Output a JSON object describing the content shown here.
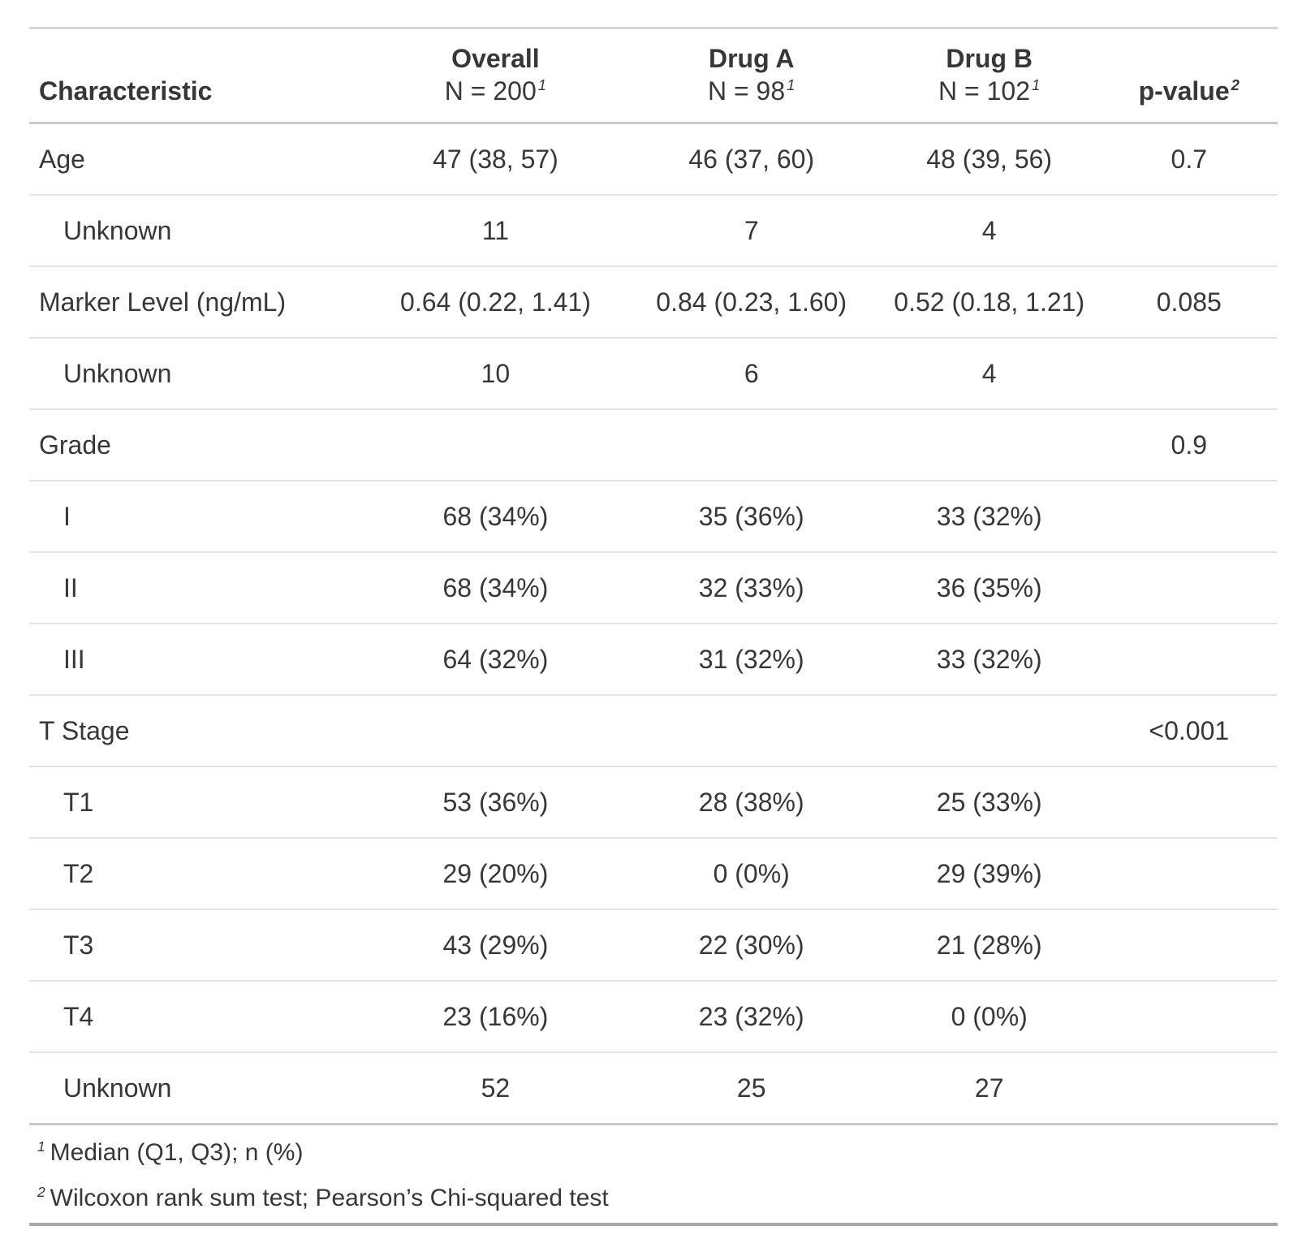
{
  "chart_data": {
    "type": "table",
    "title": "",
    "columns": [
      {
        "label": "Characteristic",
        "sublabel": "",
        "footnote_mark": "",
        "align": "left"
      },
      {
        "label": "Overall",
        "sublabel": "N = 200",
        "footnote_mark": "1",
        "align": "center"
      },
      {
        "label": "Drug A",
        "sublabel": "N = 98",
        "footnote_mark": "1",
        "align": "center"
      },
      {
        "label": "Drug B",
        "sublabel": "N = 102",
        "footnote_mark": "1",
        "align": "center"
      },
      {
        "label": "p-value",
        "sublabel": "",
        "footnote_mark": "2",
        "align": "center"
      }
    ],
    "rows": [
      {
        "label": "Age",
        "indent": false,
        "overall": "47 (38, 57)",
        "drug_a": "46 (37, 60)",
        "drug_b": "48 (39, 56)",
        "p_value": "0.7"
      },
      {
        "label": "Unknown",
        "indent": true,
        "overall": "11",
        "drug_a": "7",
        "drug_b": "4",
        "p_value": ""
      },
      {
        "label": "Marker Level (ng/mL)",
        "indent": false,
        "overall": "0.64 (0.22, 1.41)",
        "drug_a": "0.84 (0.23, 1.60)",
        "drug_b": "0.52 (0.18, 1.21)",
        "p_value": "0.085"
      },
      {
        "label": "Unknown",
        "indent": true,
        "overall": "10",
        "drug_a": "6",
        "drug_b": "4",
        "p_value": ""
      },
      {
        "label": "Grade",
        "indent": false,
        "overall": "",
        "drug_a": "",
        "drug_b": "",
        "p_value": "0.9"
      },
      {
        "label": "I",
        "indent": true,
        "overall": "68 (34%)",
        "drug_a": "35 (36%)",
        "drug_b": "33 (32%)",
        "p_value": ""
      },
      {
        "label": "II",
        "indent": true,
        "overall": "68 (34%)",
        "drug_a": "32 (33%)",
        "drug_b": "36 (35%)",
        "p_value": ""
      },
      {
        "label": "III",
        "indent": true,
        "overall": "64 (32%)",
        "drug_a": "31 (32%)",
        "drug_b": "33 (32%)",
        "p_value": ""
      },
      {
        "label": "T Stage",
        "indent": false,
        "overall": "",
        "drug_a": "",
        "drug_b": "",
        "p_value": "<0.001"
      },
      {
        "label": "T1",
        "indent": true,
        "overall": "53 (36%)",
        "drug_a": "28 (38%)",
        "drug_b": "25 (33%)",
        "p_value": ""
      },
      {
        "label": "T2",
        "indent": true,
        "overall": "29 (20%)",
        "drug_a": "0 (0%)",
        "drug_b": "29 (39%)",
        "p_value": ""
      },
      {
        "label": "T3",
        "indent": true,
        "overall": "43 (29%)",
        "drug_a": "22 (30%)",
        "drug_b": "21 (28%)",
        "p_value": ""
      },
      {
        "label": "T4",
        "indent": true,
        "overall": "23 (16%)",
        "drug_a": "23 (32%)",
        "drug_b": "0 (0%)",
        "p_value": ""
      },
      {
        "label": "Unknown",
        "indent": true,
        "overall": "52",
        "drug_a": "25",
        "drug_b": "27",
        "p_value": ""
      }
    ],
    "footnotes": [
      {
        "mark": "1",
        "text": "Median (Q1, Q3); n (%)"
      },
      {
        "mark": "2",
        "text": "Wilcoxon rank sum test; Pearson’s Chi-squared test"
      }
    ],
    "layout_hints": {
      "grid": "horizontal-rules-only",
      "stat_columns_alignment": "center",
      "text_color": "#373737",
      "rule_color_light": "#e3e3e3",
      "rule_color_medium": "#c9c9c9",
      "rule_color_bottom": "#a9a9a9"
    }
  }
}
